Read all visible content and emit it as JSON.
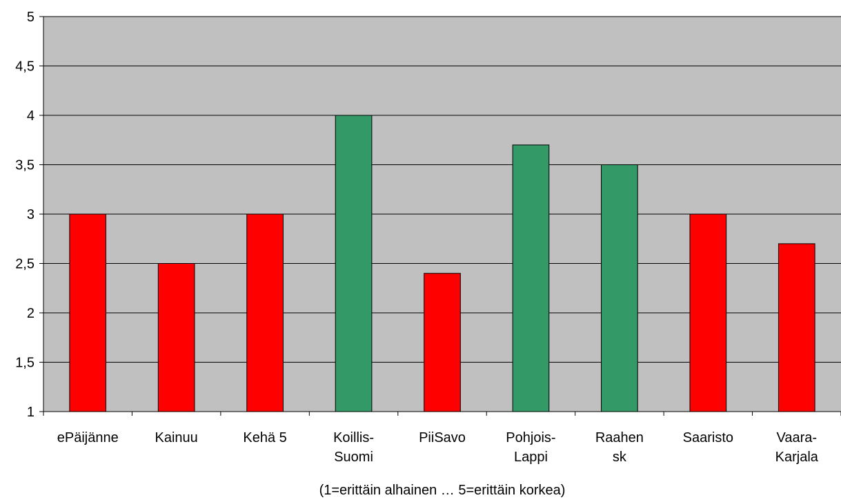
{
  "chart_data": {
    "type": "bar",
    "title": "",
    "xlabel": "(1=erittäin alhainen … 5=erittäin korkea)",
    "ylabel": "",
    "ylim": [
      1,
      5
    ],
    "yticks": [
      "1",
      "1,5",
      "2",
      "2,5",
      "3",
      "3,5",
      "4",
      "4,5",
      "5"
    ],
    "categories": [
      [
        "ePäijänne"
      ],
      [
        "Kainuu"
      ],
      [
        "Kehä 5"
      ],
      [
        "Koillis-",
        "Suomi"
      ],
      [
        "PiiSavo"
      ],
      [
        "Pohjois-",
        "Lappi"
      ],
      [
        "Raahen",
        "sk"
      ],
      [
        "Saaristo"
      ],
      [
        "Vaara-",
        "Karjala"
      ]
    ],
    "values": [
      3.0,
      2.5,
      3.0,
      4.0,
      2.4,
      3.7,
      3.5,
      3.0,
      2.7
    ],
    "bar_colors": [
      "#ff0000",
      "#ff0000",
      "#ff0000",
      "#339966",
      "#ff0000",
      "#339966",
      "#339966",
      "#ff0000",
      "#ff0000"
    ],
    "plot_background": "#c0c0c0",
    "grid": true,
    "legend": "none"
  }
}
